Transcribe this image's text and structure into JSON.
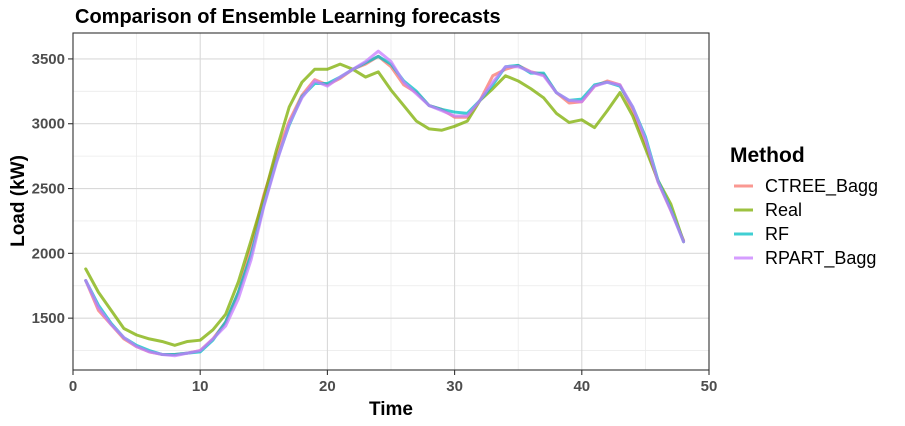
{
  "chart_data": {
    "type": "line",
    "title": "Comparison of Ensemble Learning forecasts",
    "xlabel": "Time",
    "ylabel": "Load (kW)",
    "xlim": [
      0,
      50
    ],
    "ylim": [
      1100,
      3700
    ],
    "xticks": [
      0,
      10,
      20,
      30,
      40,
      50
    ],
    "yticks": [
      1500,
      2000,
      2500,
      3000,
      3500
    ],
    "grid": true,
    "legend": {
      "title": "Method",
      "position": "right"
    },
    "x": [
      1,
      2,
      3,
      4,
      5,
      6,
      7,
      8,
      9,
      10,
      11,
      12,
      13,
      14,
      15,
      16,
      17,
      18,
      19,
      20,
      21,
      22,
      23,
      24,
      25,
      26,
      27,
      28,
      29,
      30,
      31,
      32,
      33,
      34,
      35,
      36,
      37,
      38,
      39,
      40,
      41,
      42,
      43,
      44,
      45,
      46,
      47,
      48
    ],
    "series": [
      {
        "name": "CTREE_Bagg",
        "color": "#F8766D",
        "values": [
          1790,
          1560,
          1450,
          1340,
          1280,
          1240,
          1220,
          1220,
          1230,
          1250,
          1340,
          1470,
          1700,
          2050,
          2450,
          2760,
          3020,
          3220,
          3340,
          3300,
          3350,
          3420,
          3460,
          3520,
          3440,
          3300,
          3240,
          3140,
          3110,
          3050,
          3050,
          3180,
          3370,
          3420,
          3450,
          3400,
          3380,
          3240,
          3160,
          3170,
          3290,
          3330,
          3300,
          3100,
          2850,
          2550,
          2330,
          2100
        ]
      },
      {
        "name": "Real",
        "color": "#7CAE00",
        "values": [
          1880,
          1700,
          1560,
          1420,
          1370,
          1340,
          1320,
          1290,
          1320,
          1330,
          1410,
          1530,
          1780,
          2100,
          2430,
          2800,
          3130,
          3320,
          3420,
          3420,
          3460,
          3420,
          3360,
          3400,
          3260,
          3140,
          3020,
          2960,
          2950,
          2980,
          3020,
          3180,
          3270,
          3370,
          3330,
          3270,
          3200,
          3080,
          3010,
          3030,
          2970,
          3100,
          3240,
          3060,
          2810,
          2560,
          2380,
          2090
        ]
      },
      {
        "name": "RF",
        "color": "#00BFC4",
        "values": [
          1790,
          1600,
          1460,
          1350,
          1290,
          1250,
          1220,
          1220,
          1230,
          1240,
          1330,
          1470,
          1700,
          1990,
          2370,
          2710,
          2990,
          3210,
          3310,
          3310,
          3360,
          3420,
          3470,
          3520,
          3460,
          3330,
          3250,
          3140,
          3110,
          3090,
          3080,
          3180,
          3300,
          3440,
          3450,
          3390,
          3390,
          3240,
          3180,
          3190,
          3300,
          3320,
          3290,
          3130,
          2900,
          2560,
          2340,
          2090
        ]
      },
      {
        "name": "RPART_Bagg",
        "color": "#C77CFF",
        "values": [
          1790,
          1580,
          1450,
          1350,
          1280,
          1240,
          1220,
          1210,
          1230,
          1250,
          1340,
          1440,
          1650,
          1950,
          2360,
          2700,
          3000,
          3200,
          3330,
          3290,
          3360,
          3420,
          3480,
          3560,
          3480,
          3320,
          3230,
          3140,
          3100,
          3060,
          3060,
          3180,
          3320,
          3440,
          3440,
          3400,
          3370,
          3240,
          3180,
          3170,
          3290,
          3320,
          3300,
          3130,
          2880,
          2550,
          2330,
          2090
        ]
      }
    ]
  }
}
